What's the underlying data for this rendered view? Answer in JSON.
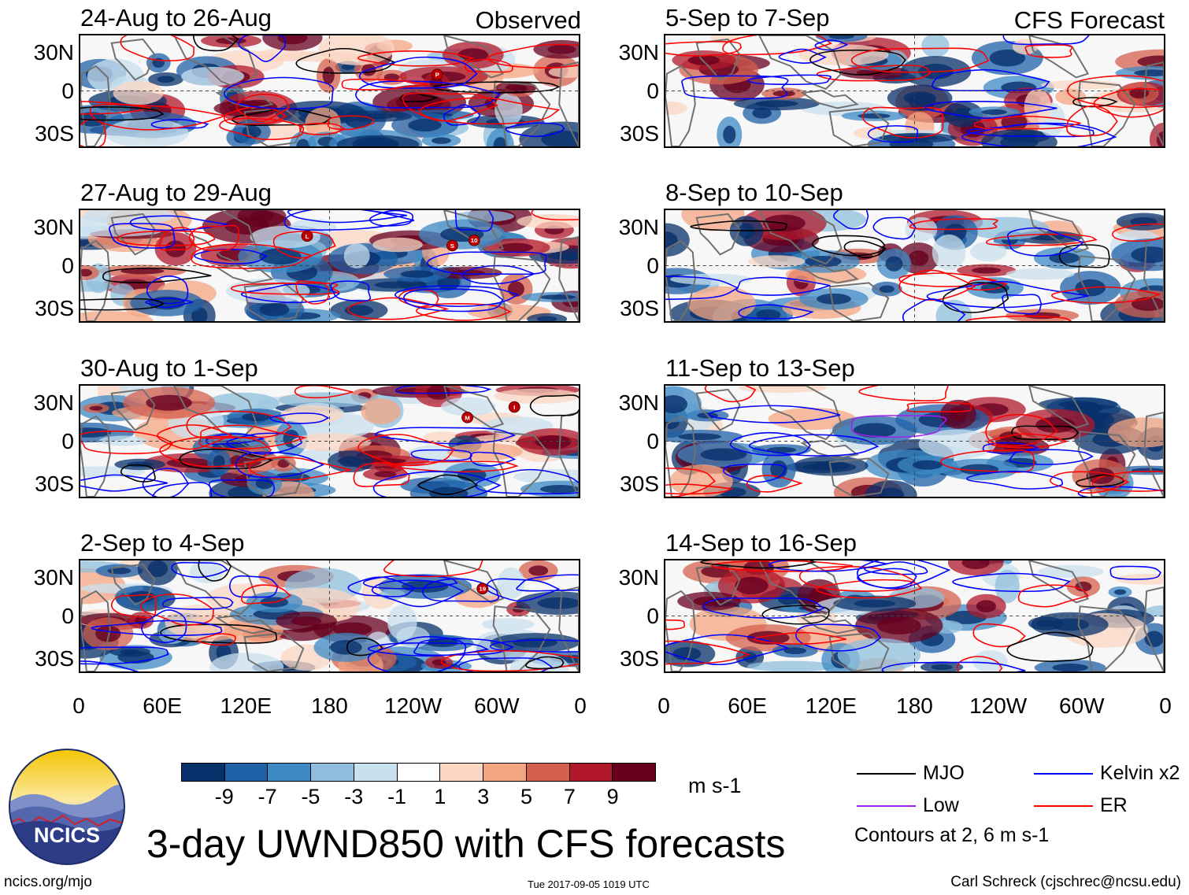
{
  "observed_heading": "Observed",
  "forecast_heading": "CFS Forecast",
  "panels_left": [
    {
      "title": "24-Aug to 26-Aug",
      "storms": [
        "P"
      ]
    },
    {
      "title": "27-Aug to 29-Aug",
      "storms": [
        "S",
        "L",
        "10"
      ]
    },
    {
      "title": "30-Aug to 1-Sep",
      "storms": [
        "M",
        "I"
      ]
    },
    {
      "title": "2-Sep to 4-Sep",
      "storms": [
        "19"
      ]
    }
  ],
  "panels_right": [
    {
      "title": "5-Sep to 7-Sep"
    },
    {
      "title": "8-Sep to 10-Sep"
    },
    {
      "title": "11-Sep to 13-Sep"
    },
    {
      "title": "14-Sep to 16-Sep"
    }
  ],
  "lat_labels": [
    "30N",
    "0",
    "30S"
  ],
  "lon_labels": [
    "0",
    "60E",
    "120E",
    "180",
    "120W",
    "60W",
    "0"
  ],
  "colorbar": {
    "colors": [
      "#08306b",
      "#1f62a8",
      "#3e8ac4",
      "#8fbfdc",
      "#c9e0ef",
      "#ffffff",
      "#fbd6c2",
      "#f4a582",
      "#d6604d",
      "#b2182b",
      "#67001f"
    ],
    "tick_labels": [
      "-9",
      "-7",
      "-5",
      "-3",
      "-1",
      "1",
      "3",
      "5",
      "7",
      "9"
    ],
    "units": "m s-1"
  },
  "legend": {
    "items": [
      {
        "label": "MJO",
        "color": "#000000"
      },
      {
        "label": "Kelvin x2",
        "color": "#0000ff"
      },
      {
        "label": "Low",
        "color": "#a020f0"
      },
      {
        "label": "ER",
        "color": "#ff0000"
      }
    ],
    "note": "Contours at 2, 6 m s-1"
  },
  "logo_text": "NCICS",
  "main_title": "3-day UWND850 with CFS forecasts",
  "footer": {
    "url": "ncics.org/mjo",
    "timestamp": "Tue 2017-09-05 1019 UTC",
    "credit": "Carl Schreck (cjschrec@ncsu.edu)"
  }
}
